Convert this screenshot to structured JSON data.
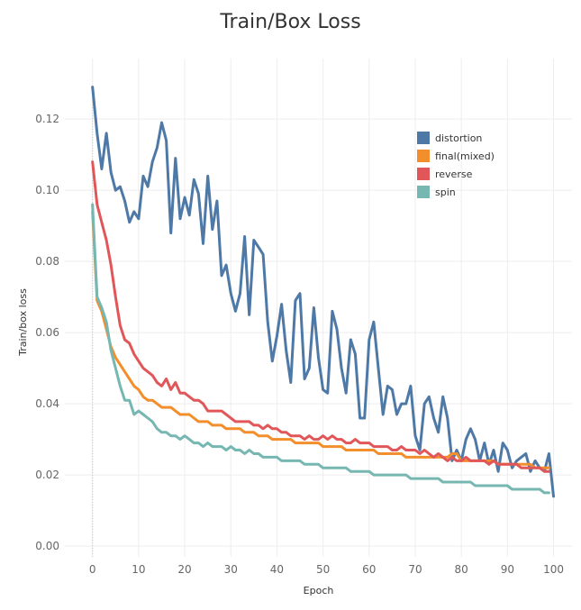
{
  "chart_data": {
    "type": "line",
    "title": "Train/Box Loss",
    "xlabel": "Epoch",
    "ylabel": "Train/box loss",
    "xlim": [
      -6,
      104
    ],
    "ylim": [
      -0.003,
      0.137
    ],
    "grid": true,
    "legend_position": "top-right",
    "x_ticks": [
      0,
      10,
      20,
      30,
      40,
      50,
      60,
      70,
      80,
      90,
      100
    ],
    "x_tick_labels": [
      "0",
      "10",
      "20",
      "30",
      "40",
      "50",
      "60",
      "70",
      "80",
      "90",
      "100"
    ],
    "y_ticks": [
      0,
      0.02,
      0.04,
      0.06,
      0.08,
      0.1,
      0.12
    ],
    "y_tick_labels": [
      "0.00",
      "0.02",
      "0.04",
      "0.06",
      "0.08",
      "0.10",
      "0.12"
    ],
    "series": [
      {
        "name": "distortion",
        "color": "#4e79a7",
        "values": [
          0.129,
          0.116,
          0.106,
          0.116,
          0.105,
          0.1,
          0.101,
          0.097,
          0.091,
          0.094,
          0.092,
          0.104,
          0.101,
          0.108,
          0.112,
          0.119,
          0.114,
          0.088,
          0.109,
          0.092,
          0.098,
          0.093,
          0.103,
          0.099,
          0.085,
          0.104,
          0.089,
          0.097,
          0.076,
          0.079,
          0.071,
          0.066,
          0.071,
          0.087,
          0.065,
          0.086,
          0.084,
          0.082,
          0.063,
          0.052,
          0.059,
          0.068,
          0.055,
          0.046,
          0.069,
          0.071,
          0.047,
          0.05,
          0.067,
          0.053,
          0.044,
          0.043,
          0.066,
          0.061,
          0.05,
          0.043,
          0.058,
          0.054,
          0.036,
          0.036,
          0.058,
          0.063,
          0.05,
          0.037,
          0.045,
          0.044,
          0.037,
          0.04,
          0.04,
          0.045,
          0.031,
          0.027,
          0.04,
          0.042,
          0.036,
          0.032,
          0.042,
          0.036,
          0.024,
          0.027,
          0.024,
          0.03,
          0.033,
          0.03,
          0.024,
          0.029,
          0.023,
          0.027,
          0.021,
          0.029,
          0.027,
          0.022,
          0.024,
          0.025,
          0.026,
          0.021,
          0.024,
          0.022,
          0.021,
          0.026,
          0.014
        ]
      },
      {
        "name": "final(mixed)",
        "color": "#f28e2b",
        "values": [
          0.094,
          0.069,
          0.066,
          0.061,
          0.056,
          0.053,
          0.051,
          0.049,
          0.047,
          0.045,
          0.044,
          0.042,
          0.041,
          0.041,
          0.04,
          0.039,
          0.039,
          0.039,
          0.038,
          0.037,
          0.037,
          0.037,
          0.036,
          0.035,
          0.035,
          0.035,
          0.034,
          0.034,
          0.034,
          0.033,
          0.033,
          0.033,
          0.033,
          0.032,
          0.032,
          0.032,
          0.031,
          0.031,
          0.031,
          0.03,
          0.03,
          0.03,
          0.03,
          0.03,
          0.029,
          0.029,
          0.029,
          0.029,
          0.029,
          0.029,
          0.028,
          0.028,
          0.028,
          0.028,
          0.028,
          0.027,
          0.027,
          0.027,
          0.027,
          0.027,
          0.027,
          0.027,
          0.026,
          0.026,
          0.026,
          0.026,
          0.026,
          0.026,
          0.025,
          0.025,
          0.025,
          0.025,
          0.025,
          0.025,
          0.025,
          0.025,
          0.025,
          0.025,
          0.026,
          0.026,
          0.024,
          0.024,
          0.024,
          0.024,
          0.024,
          0.024,
          0.024,
          0.024,
          0.023,
          0.023,
          0.023,
          0.023,
          0.023,
          0.023,
          0.023,
          0.023,
          0.022,
          0.022,
          0.022,
          0.022
        ]
      },
      {
        "name": "reverse",
        "color": "#e15759",
        "values": [
          0.108,
          0.096,
          0.091,
          0.086,
          0.079,
          0.07,
          0.062,
          0.058,
          0.057,
          0.054,
          0.052,
          0.05,
          0.049,
          0.048,
          0.046,
          0.045,
          0.047,
          0.044,
          0.046,
          0.043,
          0.043,
          0.042,
          0.041,
          0.041,
          0.04,
          0.038,
          0.038,
          0.038,
          0.038,
          0.037,
          0.036,
          0.035,
          0.035,
          0.035,
          0.035,
          0.034,
          0.034,
          0.033,
          0.034,
          0.033,
          0.033,
          0.032,
          0.032,
          0.031,
          0.031,
          0.031,
          0.03,
          0.031,
          0.03,
          0.03,
          0.031,
          0.03,
          0.031,
          0.03,
          0.03,
          0.029,
          0.029,
          0.03,
          0.029,
          0.029,
          0.029,
          0.028,
          0.028,
          0.028,
          0.028,
          0.027,
          0.027,
          0.028,
          0.027,
          0.027,
          0.027,
          0.026,
          0.027,
          0.026,
          0.025,
          0.026,
          0.025,
          0.024,
          0.025,
          0.024,
          0.024,
          0.025,
          0.024,
          0.024,
          0.024,
          0.024,
          0.023,
          0.024,
          0.023,
          0.023,
          0.023,
          0.023,
          0.023,
          0.022,
          0.022,
          0.022,
          0.022,
          0.022,
          0.021,
          0.021
        ]
      },
      {
        "name": "spin",
        "color": "#76b7b2",
        "values": [
          0.096,
          0.07,
          0.067,
          0.063,
          0.055,
          0.05,
          0.045,
          0.041,
          0.041,
          0.037,
          0.038,
          0.037,
          0.036,
          0.035,
          0.033,
          0.032,
          0.032,
          0.031,
          0.031,
          0.03,
          0.031,
          0.03,
          0.029,
          0.029,
          0.028,
          0.029,
          0.028,
          0.028,
          0.028,
          0.027,
          0.028,
          0.027,
          0.027,
          0.026,
          0.027,
          0.026,
          0.026,
          0.025,
          0.025,
          0.025,
          0.025,
          0.024,
          0.024,
          0.024,
          0.024,
          0.024,
          0.023,
          0.023,
          0.023,
          0.023,
          0.022,
          0.022,
          0.022,
          0.022,
          0.022,
          0.022,
          0.021,
          0.021,
          0.021,
          0.021,
          0.021,
          0.02,
          0.02,
          0.02,
          0.02,
          0.02,
          0.02,
          0.02,
          0.02,
          0.019,
          0.019,
          0.019,
          0.019,
          0.019,
          0.019,
          0.019,
          0.018,
          0.018,
          0.018,
          0.018,
          0.018,
          0.018,
          0.018,
          0.017,
          0.017,
          0.017,
          0.017,
          0.017,
          0.017,
          0.017,
          0.017,
          0.016,
          0.016,
          0.016,
          0.016,
          0.016,
          0.016,
          0.016,
          0.015,
          0.015
        ]
      }
    ]
  }
}
